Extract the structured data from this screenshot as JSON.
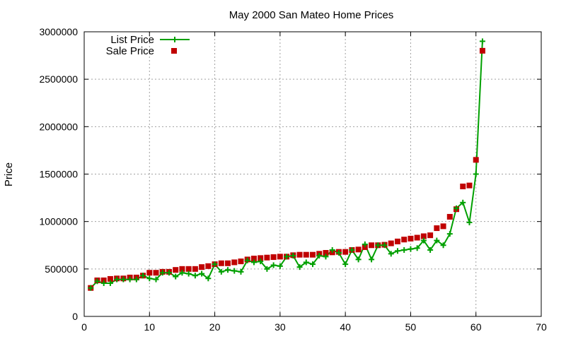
{
  "chart_data": {
    "type": "line",
    "title": "May 2000 San Mateo Home Prices",
    "xlabel": "",
    "ylabel": "Price",
    "xlim": [
      0,
      70
    ],
    "ylim": [
      0,
      3000000
    ],
    "xticks": [
      "0",
      "10",
      "20",
      "30",
      "40",
      "50",
      "60",
      "70"
    ],
    "yticks": [
      "0",
      "500000",
      "1000000",
      "1500000",
      "2000000",
      "2500000",
      "3000000"
    ],
    "grid": true,
    "legend_position": "top-left",
    "x": [
      1,
      2,
      3,
      4,
      5,
      6,
      7,
      8,
      9,
      10,
      11,
      12,
      13,
      14,
      15,
      16,
      17,
      18,
      19,
      20,
      21,
      22,
      23,
      24,
      25,
      26,
      27,
      28,
      29,
      30,
      31,
      32,
      33,
      34,
      35,
      36,
      37,
      38,
      39,
      40,
      41,
      42,
      43,
      44,
      45,
      46,
      47,
      48,
      49,
      50,
      51,
      52,
      53,
      54,
      55,
      56,
      57,
      58,
      59,
      60,
      61
    ],
    "series": [
      {
        "name": "List Price",
        "style": "line-cross",
        "color": "#00a000",
        "values": [
          300000,
          370000,
          350000,
          350000,
          390000,
          390000,
          390000,
          390000,
          430000,
          400000,
          390000,
          460000,
          460000,
          420000,
          460000,
          450000,
          430000,
          450000,
          400000,
          550000,
          470000,
          490000,
          480000,
          470000,
          590000,
          570000,
          580000,
          500000,
          540000,
          530000,
          630000,
          640000,
          520000,
          570000,
          550000,
          640000,
          630000,
          700000,
          670000,
          550000,
          700000,
          600000,
          760000,
          600000,
          750000,
          750000,
          660000,
          690000,
          700000,
          710000,
          720000,
          800000,
          700000,
          800000,
          750000,
          870000,
          1140000,
          1200000,
          990000,
          1500000,
          2900000
        ]
      },
      {
        "name": "Sale Price",
        "style": "square",
        "color": "#c00000",
        "values": [
          300000,
          380000,
          380000,
          395000,
          400000,
          400000,
          410000,
          410000,
          430000,
          460000,
          460000,
          470000,
          470000,
          490000,
          500000,
          500000,
          500000,
          520000,
          530000,
          550000,
          560000,
          560000,
          570000,
          580000,
          600000,
          610000,
          615000,
          620000,
          625000,
          630000,
          630000,
          645000,
          650000,
          650000,
          650000,
          660000,
          670000,
          675000,
          680000,
          680000,
          700000,
          705000,
          730000,
          750000,
          750000,
          755000,
          770000,
          790000,
          810000,
          820000,
          830000,
          845000,
          855000,
          930000,
          950000,
          1050000,
          1130000,
          1370000,
          1380000,
          1650000,
          2800000
        ]
      }
    ]
  }
}
